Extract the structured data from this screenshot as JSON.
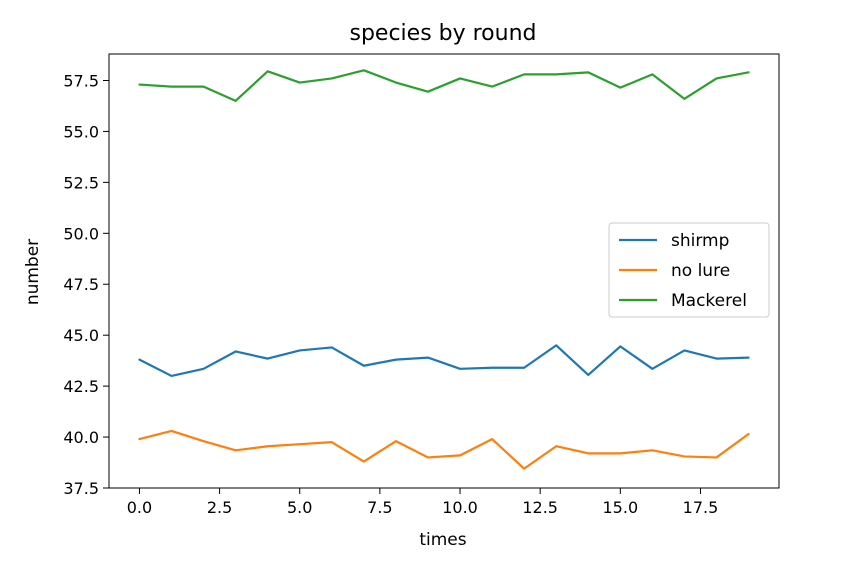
{
  "chart_data": {
    "type": "line",
    "title": "species by round",
    "xlabel": "times",
    "ylabel": "number",
    "xlim": [
      -0.95,
      19.95
    ],
    "ylim": [
      37.5,
      58.8
    ],
    "xticks": [
      0.0,
      2.5,
      5.0,
      7.5,
      10.0,
      12.5,
      15.0,
      17.5
    ],
    "xtick_labels": [
      "0.0",
      "2.5",
      "5.0",
      "7.5",
      "10.0",
      "12.5",
      "15.0",
      "17.5"
    ],
    "yticks": [
      37.5,
      40.0,
      42.5,
      45.0,
      47.5,
      50.0,
      52.5,
      55.0,
      57.5
    ],
    "ytick_labels": [
      "37.5",
      "40.0",
      "42.5",
      "45.0",
      "47.5",
      "50.0",
      "52.5",
      "55.0",
      "57.5"
    ],
    "grid": false,
    "legend_position": "center-right",
    "x": [
      0,
      1,
      2,
      3,
      4,
      5,
      6,
      7,
      8,
      9,
      10,
      11,
      12,
      13,
      14,
      15,
      16,
      17,
      18,
      19
    ],
    "series": [
      {
        "name": "shirmp",
        "color": "#1f77b4",
        "values": [
          43.8,
          43.0,
          43.35,
          44.2,
          43.85,
          44.25,
          44.4,
          43.5,
          43.8,
          43.9,
          43.35,
          43.4,
          43.4,
          44.5,
          43.05,
          44.45,
          43.35,
          44.25,
          43.85,
          43.9
        ]
      },
      {
        "name": "no lure",
        "color": "#ff7f0e",
        "values": [
          39.9,
          40.3,
          39.8,
          39.35,
          39.55,
          39.65,
          39.75,
          38.8,
          39.8,
          39.0,
          39.1,
          39.9,
          38.45,
          39.55,
          39.2,
          39.2,
          39.35,
          39.05,
          39.0,
          40.15
        ]
      },
      {
        "name": "Mackerel",
        "color": "#2ca02c",
        "values": [
          57.3,
          57.2,
          57.2,
          56.5,
          57.95,
          57.4,
          57.6,
          58.0,
          57.4,
          56.95,
          57.6,
          57.2,
          57.8,
          57.8,
          57.9,
          57.15,
          57.8,
          56.6,
          57.6,
          57.9
        ]
      }
    ]
  }
}
